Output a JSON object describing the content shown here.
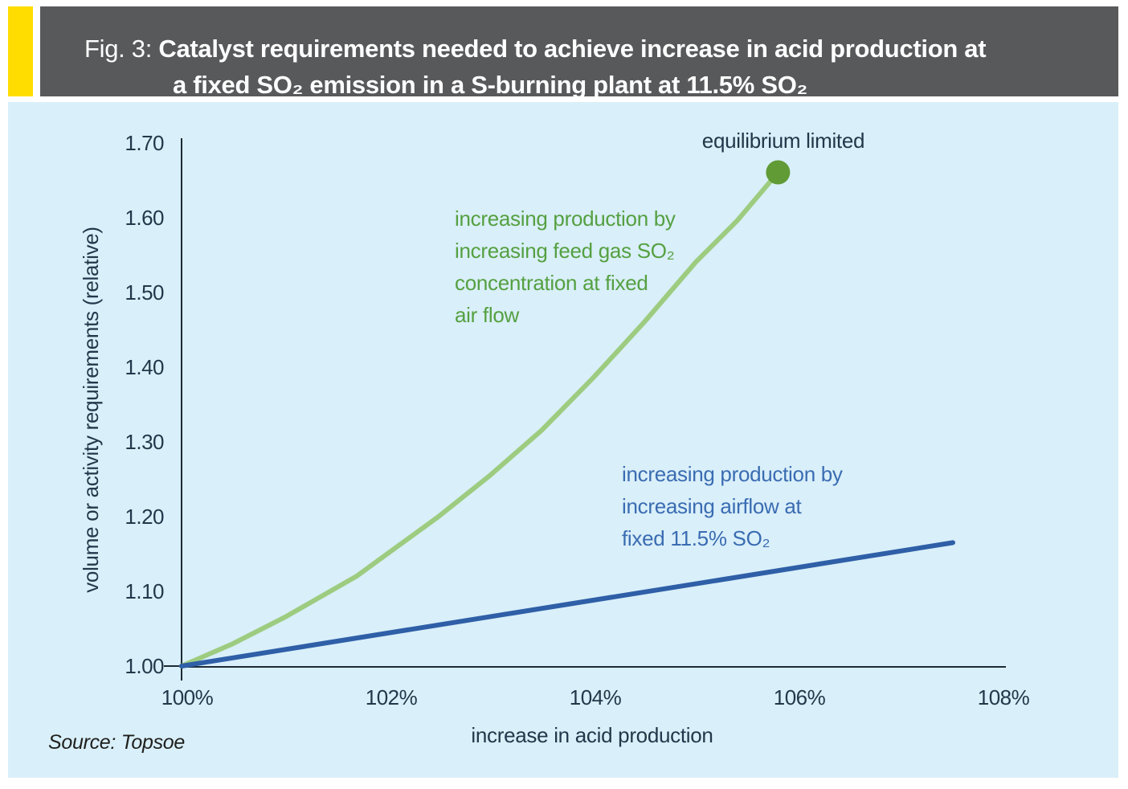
{
  "header": {
    "fig_label": "Fig. 3:",
    "title_line1": "Catalyst requirements needed to achieve increase in acid production at",
    "title_line2": "a fixed SO₂ emission in a S-burning plant at 11.5% SO₂",
    "bar_color": "#58595b",
    "accent_color": "#ffdd00",
    "text_color": "#ffffff"
  },
  "chart": {
    "background": "#d9eff9",
    "axis_color": "#1c2b36",
    "y_axis_title": "volume or activity requirements (relative)",
    "x_axis_title": "increase in acid production",
    "y_tick_labels": [
      "1.70",
      "1.60",
      "1.50",
      "1.40",
      "1.30",
      "1.20",
      "1.10",
      "1.00"
    ],
    "x_tick_labels": [
      "100%",
      "102%",
      "104%",
      "106%",
      "108%"
    ],
    "green_annotation": "increasing production by\nincreasing feed gas SO₂\nconcentration at fixed\nair flow",
    "blue_annotation": "increasing production by\nincreasing airflow at\nfixed 11.5% SO₂",
    "equilibrium_label": "equilibrium limited",
    "source": "Source: Topsoe",
    "green_line_color": "#9dcc80",
    "green_dot_color": "#609b36",
    "green_text_color": "#55a041",
    "blue_line_color": "#2e5fa7",
    "blue_text_color": "#3a6cb2"
  },
  "chart_data": {
    "type": "line",
    "title": "Catalyst requirements needed to achieve increase in acid production at a fixed SO₂ emission in a S-burning plant at 11.5% SO₂",
    "xlabel": "increase in acid production",
    "ylabel": "volume or activity requirements (relative)",
    "xlim": [
      100,
      108
    ],
    "ylim": [
      1.0,
      1.7
    ],
    "x_ticks": [
      100,
      102,
      104,
      106,
      108
    ],
    "x_tick_format": "percent",
    "y_ticks": [
      1.0,
      1.1,
      1.2,
      1.3,
      1.4,
      1.5,
      1.6,
      1.7
    ],
    "grid": false,
    "legend": "inline text annotations",
    "series": [
      {
        "name": "increasing production by increasing feed gas SO₂ concentration at fixed air flow",
        "color": "#9dcc80",
        "x": [
          100,
          100.5,
          101,
          101.7,
          102,
          102.5,
          103,
          103.5,
          104,
          104.5,
          105,
          105.4,
          105.8
        ],
        "y": [
          1.0,
          1.03,
          1.065,
          1.12,
          1.15,
          1.2,
          1.255,
          1.315,
          1.385,
          1.46,
          1.54,
          1.595,
          1.66
        ],
        "end_marker": {
          "x": 105.8,
          "y": 1.66,
          "label": "equilibrium limited",
          "color": "#609b36"
        }
      },
      {
        "name": "increasing production by increasing airflow at fixed 11.5% SO₂",
        "color": "#2e5fa7",
        "x": [
          100,
          107.5
        ],
        "y": [
          1.0,
          1.165
        ]
      }
    ],
    "source": "Source: Topsoe"
  }
}
